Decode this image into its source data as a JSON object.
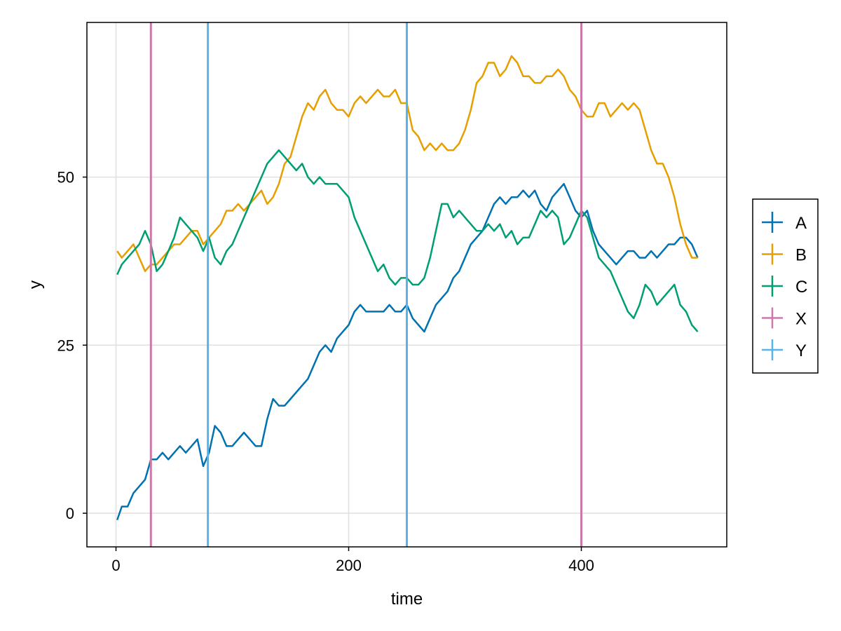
{
  "chart_data": {
    "type": "line",
    "title": "",
    "xlabel": "time",
    "ylabel": "y",
    "xlim": [
      -25,
      525
    ],
    "ylim": [
      -5,
      73
    ],
    "xticks": [
      0,
      200,
      400
    ],
    "yticks": [
      0,
      25,
      50
    ],
    "grid": true,
    "legend_position": "right",
    "series": [
      {
        "name": "A",
        "color": "#0072B2",
        "x": [
          1,
          5,
          10,
          15,
          20,
          25,
          30,
          35,
          40,
          45,
          50,
          55,
          60,
          65,
          70,
          75,
          80,
          85,
          90,
          95,
          100,
          105,
          110,
          115,
          120,
          125,
          130,
          135,
          140,
          145,
          150,
          155,
          160,
          165,
          170,
          175,
          180,
          185,
          190,
          195,
          200,
          205,
          210,
          215,
          220,
          225,
          230,
          235,
          240,
          245,
          250,
          255,
          260,
          265,
          270,
          275,
          280,
          285,
          290,
          295,
          300,
          305,
          310,
          315,
          320,
          325,
          330,
          335,
          340,
          345,
          350,
          355,
          360,
          365,
          370,
          375,
          380,
          385,
          390,
          395,
          400,
          405,
          410,
          415,
          420,
          425,
          430,
          435,
          440,
          445,
          450,
          455,
          460,
          465,
          470,
          475,
          480,
          485,
          490,
          495,
          500
        ],
        "y": [
          -1,
          1,
          1,
          3,
          4,
          5,
          8,
          8,
          9,
          8,
          9,
          10,
          9,
          10,
          11,
          7,
          9,
          13,
          12,
          10,
          10,
          11,
          12,
          11,
          10,
          10,
          14,
          17,
          16,
          16,
          17,
          18,
          19,
          20,
          22,
          24,
          25,
          24,
          26,
          27,
          28,
          30,
          31,
          30,
          30,
          30,
          30,
          31,
          30,
          30,
          31,
          29,
          28,
          27,
          29,
          31,
          32,
          33,
          35,
          36,
          38,
          40,
          41,
          42,
          44,
          46,
          47,
          46,
          47,
          47,
          48,
          47,
          48,
          46,
          45,
          47,
          48,
          49,
          47,
          45,
          44,
          45,
          42,
          40,
          39,
          38,
          37,
          38,
          39,
          39,
          38,
          38,
          39,
          38,
          39,
          40,
          40,
          41,
          41,
          40,
          38
        ]
      },
      {
        "name": "B",
        "color": "#E69F00",
        "x": [
          1,
          5,
          10,
          15,
          20,
          25,
          30,
          35,
          40,
          45,
          50,
          55,
          60,
          65,
          70,
          75,
          80,
          85,
          90,
          95,
          100,
          105,
          110,
          115,
          120,
          125,
          130,
          135,
          140,
          145,
          150,
          155,
          160,
          165,
          170,
          175,
          180,
          185,
          190,
          195,
          200,
          205,
          210,
          215,
          220,
          225,
          230,
          235,
          240,
          245,
          250,
          255,
          260,
          265,
          270,
          275,
          280,
          285,
          290,
          295,
          300,
          305,
          310,
          315,
          320,
          325,
          330,
          335,
          340,
          345,
          350,
          355,
          360,
          365,
          370,
          375,
          380,
          385,
          390,
          395,
          400,
          405,
          410,
          415,
          420,
          425,
          430,
          435,
          440,
          445,
          450,
          455,
          460,
          465,
          470,
          475,
          480,
          485,
          490,
          495,
          500
        ],
        "y": [
          39,
          38,
          39,
          40,
          38,
          36,
          37,
          37,
          38,
          39,
          40,
          40,
          41,
          42,
          42,
          40,
          41,
          42,
          43,
          45,
          45,
          46,
          45,
          46,
          47,
          48,
          46,
          47,
          49,
          52,
          53,
          56,
          59,
          61,
          60,
          62,
          63,
          61,
          60,
          60,
          59,
          61,
          62,
          61,
          62,
          63,
          62,
          62,
          63,
          61,
          61,
          57,
          56,
          54,
          55,
          54,
          55,
          54,
          54,
          55,
          57,
          60,
          64,
          65,
          67,
          67,
          65,
          66,
          68,
          67,
          65,
          65,
          64,
          64,
          65,
          65,
          66,
          65,
          63,
          62,
          60,
          59,
          59,
          61,
          61,
          59,
          60,
          61,
          60,
          61,
          60,
          57,
          54,
          52,
          52,
          50,
          47,
          43,
          40,
          38,
          38
        ]
      },
      {
        "name": "C",
        "color": "#009E73",
        "x": [
          1,
          5,
          10,
          15,
          20,
          25,
          30,
          35,
          40,
          45,
          50,
          55,
          60,
          65,
          70,
          75,
          80,
          85,
          90,
          95,
          100,
          105,
          110,
          115,
          120,
          125,
          130,
          135,
          140,
          145,
          150,
          155,
          160,
          165,
          170,
          175,
          180,
          185,
          190,
          195,
          200,
          205,
          210,
          215,
          220,
          225,
          230,
          235,
          240,
          245,
          250,
          255,
          260,
          265,
          270,
          275,
          280,
          285,
          290,
          295,
          300,
          305,
          310,
          315,
          320,
          325,
          330,
          335,
          340,
          345,
          350,
          355,
          360,
          365,
          370,
          375,
          380,
          385,
          390,
          395,
          400,
          405,
          410,
          415,
          420,
          425,
          430,
          435,
          440,
          445,
          450,
          455,
          460,
          465,
          470,
          475,
          480,
          485,
          490,
          495,
          500
        ],
        "y": [
          35.5,
          37,
          38,
          39,
          40,
          42,
          40,
          36,
          37,
          39,
          41,
          44,
          43,
          42,
          41,
          39,
          41,
          38,
          37,
          39,
          40,
          42,
          44,
          46,
          48,
          50,
          52,
          53,
          54,
          53,
          52,
          51,
          52,
          50,
          49,
          50,
          49,
          49,
          49,
          48,
          47,
          44,
          42,
          40,
          38,
          36,
          37,
          35,
          34,
          35,
          35,
          34,
          34,
          35,
          38,
          42,
          46,
          46,
          44,
          45,
          44,
          43,
          42,
          42,
          43,
          42,
          43,
          41,
          42,
          40,
          41,
          41,
          43,
          45,
          44,
          45,
          44,
          40,
          41,
          43,
          45,
          44,
          41,
          38,
          37,
          36,
          34,
          32,
          30,
          29,
          31,
          34,
          33,
          31,
          32,
          33,
          34,
          31,
          30,
          28,
          27
        ]
      },
      {
        "name": "X",
        "color": "#CC79A7",
        "vlines": [
          30,
          400
        ]
      },
      {
        "name": "Y",
        "color": "#56B4E9",
        "vlines": [
          79,
          250
        ]
      }
    ]
  }
}
